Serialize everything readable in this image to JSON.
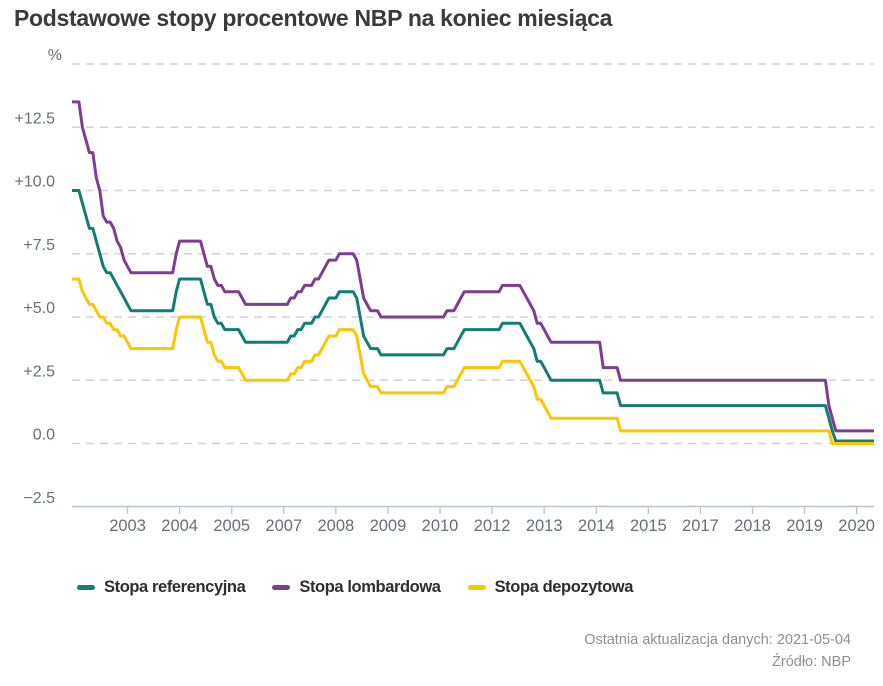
{
  "title": "Podstawowe stopy procentowe NBP na koniec miesiąca",
  "legend": {
    "items": [
      {
        "id": "referencyjna",
        "label": "Stopa referencyjna",
        "color": "#117e76"
      },
      {
        "id": "lombardowa",
        "label": "Stopa lombardowa",
        "color": "#7d3e91"
      },
      {
        "id": "depozytowa",
        "label": "Stopa depozytowa",
        "color": "#fcc602"
      }
    ]
  },
  "footer": {
    "updated": "Ostatnia aktualizacja danych: 2021-05-04",
    "source": "Źródło: NBP"
  },
  "chart_data": {
    "type": "line",
    "title": "Podstawowe stopy procentowe NBP na koniec miesiąca",
    "x_unit": "month",
    "x_start": "2002-01",
    "x_end": "2021-04",
    "ylim": [
      -2.5,
      15
    ],
    "grid": "dashed-horizontal",
    "legend_position": "bottom-left",
    "y_axis": {
      "unit_label": "%",
      "ticks": [
        {
          "value": 15,
          "label": "%"
        },
        {
          "value": 12.5,
          "label": "+12.5"
        },
        {
          "value": 10,
          "label": "+10.0"
        },
        {
          "value": 7.5,
          "label": "+7.5"
        },
        {
          "value": 5,
          "label": "+5.0"
        },
        {
          "value": 2.5,
          "label": "+2.5"
        },
        {
          "value": 0,
          "label": "0.0"
        },
        {
          "value": -2.5,
          "label": "−2.5"
        }
      ]
    },
    "x_axis": {
      "ticks": [
        {
          "date": "2003-05",
          "label": "2003"
        },
        {
          "date": "2004-08",
          "label": "2004"
        },
        {
          "date": "2005-11",
          "label": "2005"
        },
        {
          "date": "2007-02",
          "label": "2007"
        },
        {
          "date": "2008-05",
          "label": "2008"
        },
        {
          "date": "2009-08",
          "label": "2009"
        },
        {
          "date": "2010-11",
          "label": "2010"
        },
        {
          "date": "2012-02",
          "label": "2012"
        },
        {
          "date": "2013-05",
          "label": "2013"
        },
        {
          "date": "2014-08",
          "label": "2014"
        },
        {
          "date": "2015-11",
          "label": "2015"
        },
        {
          "date": "2017-02",
          "label": "2017"
        },
        {
          "date": "2018-05",
          "label": "2018"
        },
        {
          "date": "2019-08",
          "label": "2019"
        },
        {
          "date": "2020-11",
          "label": "2020"
        }
      ]
    },
    "series": [
      {
        "id": "referencyjna",
        "name": "Stopa referencyjna",
        "color": "#117e76",
        "breakpoints": [
          [
            "2002-01",
            10.0
          ],
          [
            "2002-04",
            9.5
          ],
          [
            "2002-05",
            9.0
          ],
          [
            "2002-06",
            8.5
          ],
          [
            "2002-08",
            8.0
          ],
          [
            "2002-09",
            7.5
          ],
          [
            "2002-10",
            7.0
          ],
          [
            "2002-11",
            6.75
          ],
          [
            "2003-01",
            6.5
          ],
          [
            "2003-02",
            6.25
          ],
          [
            "2003-03",
            6.0
          ],
          [
            "2003-04",
            5.75
          ],
          [
            "2003-05",
            5.5
          ],
          [
            "2003-06",
            5.25
          ],
          [
            "2004-07",
            6.0
          ],
          [
            "2004-08",
            6.5
          ],
          [
            "2005-03",
            6.0
          ],
          [
            "2005-04",
            5.5
          ],
          [
            "2005-06",
            5.0
          ],
          [
            "2005-07",
            4.75
          ],
          [
            "2005-09",
            4.5
          ],
          [
            "2006-02",
            4.25
          ],
          [
            "2006-03",
            4.0
          ],
          [
            "2007-04",
            4.25
          ],
          [
            "2007-06",
            4.5
          ],
          [
            "2007-08",
            4.75
          ],
          [
            "2007-11",
            5.0
          ],
          [
            "2008-01",
            5.25
          ],
          [
            "2008-02",
            5.5
          ],
          [
            "2008-03",
            5.75
          ],
          [
            "2008-06",
            6.0
          ],
          [
            "2008-11",
            5.75
          ],
          [
            "2008-12",
            5.0
          ],
          [
            "2009-01",
            4.25
          ],
          [
            "2009-02",
            4.0
          ],
          [
            "2009-03",
            3.75
          ],
          [
            "2009-06",
            3.5
          ],
          [
            "2011-01",
            3.75
          ],
          [
            "2011-04",
            4.0
          ],
          [
            "2011-05",
            4.25
          ],
          [
            "2011-06",
            4.5
          ],
          [
            "2012-05",
            4.75
          ],
          [
            "2012-11",
            4.5
          ],
          [
            "2012-12",
            4.25
          ],
          [
            "2013-01",
            4.0
          ],
          [
            "2013-02",
            3.75
          ],
          [
            "2013-03",
            3.25
          ],
          [
            "2013-05",
            3.0
          ],
          [
            "2013-06",
            2.75
          ],
          [
            "2013-07",
            2.5
          ],
          [
            "2014-10",
            2.0
          ],
          [
            "2015-03",
            1.5
          ],
          [
            "2020-03",
            1.0
          ],
          [
            "2020-04",
            0.5
          ],
          [
            "2020-05",
            0.1
          ]
        ]
      },
      {
        "id": "lombardowa",
        "name": "Stopa lombardowa",
        "color": "#7d3e91",
        "breakpoints": [
          [
            "2002-01",
            13.5
          ],
          [
            "2002-04",
            12.5
          ],
          [
            "2002-05",
            12.0
          ],
          [
            "2002-06",
            11.5
          ],
          [
            "2002-08",
            10.5
          ],
          [
            "2002-09",
            10.0
          ],
          [
            "2002-10",
            9.0
          ],
          [
            "2002-11",
            8.75
          ],
          [
            "2003-01",
            8.5
          ],
          [
            "2003-02",
            8.0
          ],
          [
            "2003-03",
            7.75
          ],
          [
            "2003-04",
            7.25
          ],
          [
            "2003-05",
            7.0
          ],
          [
            "2003-06",
            6.75
          ],
          [
            "2004-07",
            7.5
          ],
          [
            "2004-08",
            8.0
          ],
          [
            "2005-03",
            7.5
          ],
          [
            "2005-04",
            7.0
          ],
          [
            "2005-06",
            6.5
          ],
          [
            "2005-07",
            6.25
          ],
          [
            "2005-09",
            6.0
          ],
          [
            "2006-02",
            5.75
          ],
          [
            "2006-03",
            5.5
          ],
          [
            "2007-04",
            5.75
          ],
          [
            "2007-06",
            6.0
          ],
          [
            "2007-08",
            6.25
          ],
          [
            "2007-11",
            6.5
          ],
          [
            "2008-01",
            6.75
          ],
          [
            "2008-02",
            7.0
          ],
          [
            "2008-03",
            7.25
          ],
          [
            "2008-06",
            7.5
          ],
          [
            "2008-11",
            7.25
          ],
          [
            "2008-12",
            6.5
          ],
          [
            "2009-01",
            5.75
          ],
          [
            "2009-02",
            5.5
          ],
          [
            "2009-03",
            5.25
          ],
          [
            "2009-06",
            5.0
          ],
          [
            "2011-01",
            5.25
          ],
          [
            "2011-04",
            5.5
          ],
          [
            "2011-05",
            5.75
          ],
          [
            "2011-06",
            6.0
          ],
          [
            "2012-05",
            6.25
          ],
          [
            "2012-11",
            6.0
          ],
          [
            "2012-12",
            5.75
          ],
          [
            "2013-01",
            5.5
          ],
          [
            "2013-02",
            5.25
          ],
          [
            "2013-03",
            4.75
          ],
          [
            "2013-05",
            4.5
          ],
          [
            "2013-06",
            4.25
          ],
          [
            "2013-07",
            4.0
          ],
          [
            "2014-10",
            3.0
          ],
          [
            "2015-03",
            2.5
          ],
          [
            "2020-03",
            1.5
          ],
          [
            "2020-04",
            1.0
          ],
          [
            "2020-05",
            0.5
          ]
        ]
      },
      {
        "id": "depozytowa",
        "name": "Stopa depozytowa",
        "color": "#fcc602",
        "breakpoints": [
          [
            "2002-01",
            6.5
          ],
          [
            "2002-04",
            6.0
          ],
          [
            "2002-05",
            5.75
          ],
          [
            "2002-06",
            5.5
          ],
          [
            "2002-08",
            5.25
          ],
          [
            "2002-09",
            5.0
          ],
          [
            "2002-11",
            4.75
          ],
          [
            "2003-01",
            4.5
          ],
          [
            "2003-03",
            4.25
          ],
          [
            "2003-05",
            4.0
          ],
          [
            "2003-06",
            3.75
          ],
          [
            "2004-07",
            4.5
          ],
          [
            "2004-08",
            5.0
          ],
          [
            "2005-03",
            4.5
          ],
          [
            "2005-04",
            4.0
          ],
          [
            "2005-06",
            3.5
          ],
          [
            "2005-07",
            3.25
          ],
          [
            "2005-09",
            3.0
          ],
          [
            "2006-02",
            2.75
          ],
          [
            "2006-03",
            2.5
          ],
          [
            "2007-04",
            2.75
          ],
          [
            "2007-06",
            3.0
          ],
          [
            "2007-08",
            3.25
          ],
          [
            "2007-11",
            3.5
          ],
          [
            "2008-01",
            3.75
          ],
          [
            "2008-02",
            4.0
          ],
          [
            "2008-03",
            4.25
          ],
          [
            "2008-06",
            4.5
          ],
          [
            "2008-11",
            4.25
          ],
          [
            "2008-12",
            3.5
          ],
          [
            "2009-01",
            2.75
          ],
          [
            "2009-02",
            2.5
          ],
          [
            "2009-03",
            2.25
          ],
          [
            "2009-06",
            2.0
          ],
          [
            "2011-01",
            2.25
          ],
          [
            "2011-04",
            2.5
          ],
          [
            "2011-05",
            2.75
          ],
          [
            "2011-06",
            3.0
          ],
          [
            "2012-05",
            3.25
          ],
          [
            "2012-11",
            3.0
          ],
          [
            "2012-12",
            2.75
          ],
          [
            "2013-01",
            2.5
          ],
          [
            "2013-02",
            2.25
          ],
          [
            "2013-03",
            1.75
          ],
          [
            "2013-05",
            1.5
          ],
          [
            "2013-06",
            1.25
          ],
          [
            "2013-07",
            1.0
          ],
          [
            "2015-03",
            0.5
          ],
          [
            "2020-04",
            0.0
          ]
        ]
      }
    ],
    "colors": {
      "gridline": "#d2d2d2",
      "axis": "#b7c5cd",
      "axis_label": "#65707a",
      "title": "#3a3a3a",
      "footer_text": "#8f8f8f"
    }
  }
}
